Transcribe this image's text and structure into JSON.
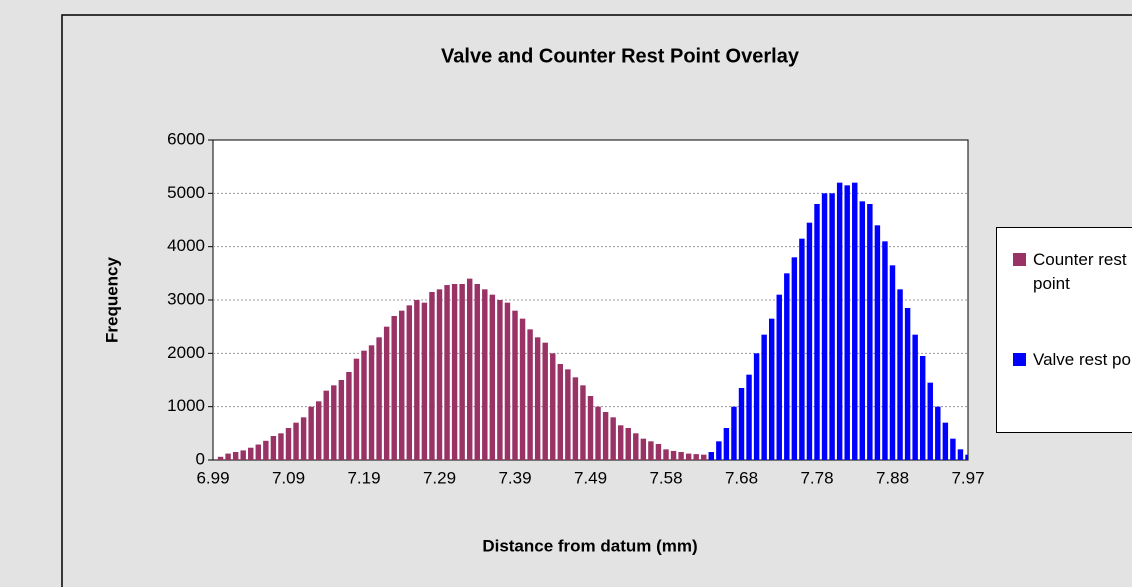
{
  "chart_data": {
    "type": "bar",
    "title": "Valve and Counter Rest Point Overlay",
    "x_label": "Distance from datum (mm)",
    "y_label": "Frequency",
    "categories": [
      "6.99",
      null,
      null,
      null,
      null,
      null,
      null,
      null,
      null,
      null,
      "7.09",
      null,
      null,
      null,
      null,
      null,
      null,
      null,
      null,
      null,
      "7.19",
      null,
      null,
      null,
      null,
      null,
      null,
      null,
      null,
      null,
      "7.29",
      null,
      null,
      null,
      null,
      null,
      null,
      null,
      null,
      null,
      "7.39",
      null,
      null,
      null,
      null,
      null,
      null,
      null,
      null,
      null,
      "7.49",
      null,
      null,
      null,
      null,
      null,
      null,
      null,
      null,
      null,
      "7.58",
      null,
      null,
      null,
      null,
      null,
      null,
      null,
      null,
      null,
      "7.68",
      null,
      null,
      null,
      null,
      null,
      null,
      null,
      null,
      null,
      "7.78",
      null,
      null,
      null,
      null,
      null,
      null,
      null,
      null,
      null,
      "7.88",
      null,
      null,
      null,
      null,
      null,
      null,
      null,
      null,
      null,
      "7.97"
    ],
    "series": [
      {
        "name": "Counter rest point",
        "color": "#993366",
        "values": [
          null,
          60,
          120,
          150,
          180,
          230,
          290,
          360,
          450,
          500,
          600,
          700,
          800,
          1000,
          1100,
          1300,
          1400,
          1500,
          1650,
          1900,
          2050,
          2150,
          2300,
          2500,
          2700,
          2800,
          2900,
          3000,
          2950,
          3150,
          3200,
          3280,
          3300,
          3300,
          3400,
          3300,
          3200,
          3100,
          3000,
          2950,
          2800,
          2650,
          2450,
          2300,
          2200,
          2000,
          1800,
          1700,
          1550,
          1400,
          1200,
          1000,
          900,
          800,
          650,
          600,
          500,
          400,
          350,
          300,
          200,
          170,
          150,
          120,
          110,
          100,
          90,
          null,
          null,
          null,
          null,
          null,
          null,
          null,
          null,
          null,
          null,
          null,
          null,
          null,
          null,
          null,
          null,
          null,
          null,
          null,
          null,
          null,
          null,
          null,
          null,
          null,
          null,
          null,
          null,
          null,
          null,
          null,
          null,
          null,
          null
        ]
      },
      {
        "name": "Valve rest point",
        "color": "#0000ff",
        "values": [
          null,
          null,
          null,
          null,
          null,
          null,
          null,
          null,
          null,
          null,
          null,
          null,
          null,
          null,
          null,
          null,
          null,
          null,
          null,
          null,
          null,
          null,
          null,
          null,
          null,
          null,
          null,
          null,
          null,
          null,
          null,
          null,
          null,
          null,
          null,
          null,
          null,
          null,
          null,
          null,
          null,
          null,
          null,
          null,
          null,
          null,
          null,
          null,
          null,
          null,
          null,
          null,
          null,
          null,
          null,
          null,
          null,
          null,
          null,
          null,
          null,
          null,
          null,
          null,
          null,
          null,
          150,
          350,
          600,
          1000,
          1350,
          1600,
          2000,
          2350,
          2650,
          3100,
          3500,
          3800,
          4150,
          4450,
          4800,
          5000,
          5000,
          5200,
          5150,
          5200,
          4850,
          4800,
          4400,
          4100,
          3650,
          3200,
          2850,
          2350,
          1950,
          1450,
          1000,
          700,
          400,
          200,
          100
        ]
      }
    ],
    "ylim": [
      0,
      6000
    ],
    "yticks": [
      0,
      1000,
      2000,
      3000,
      4000,
      5000,
      6000
    ],
    "grid": true
  }
}
